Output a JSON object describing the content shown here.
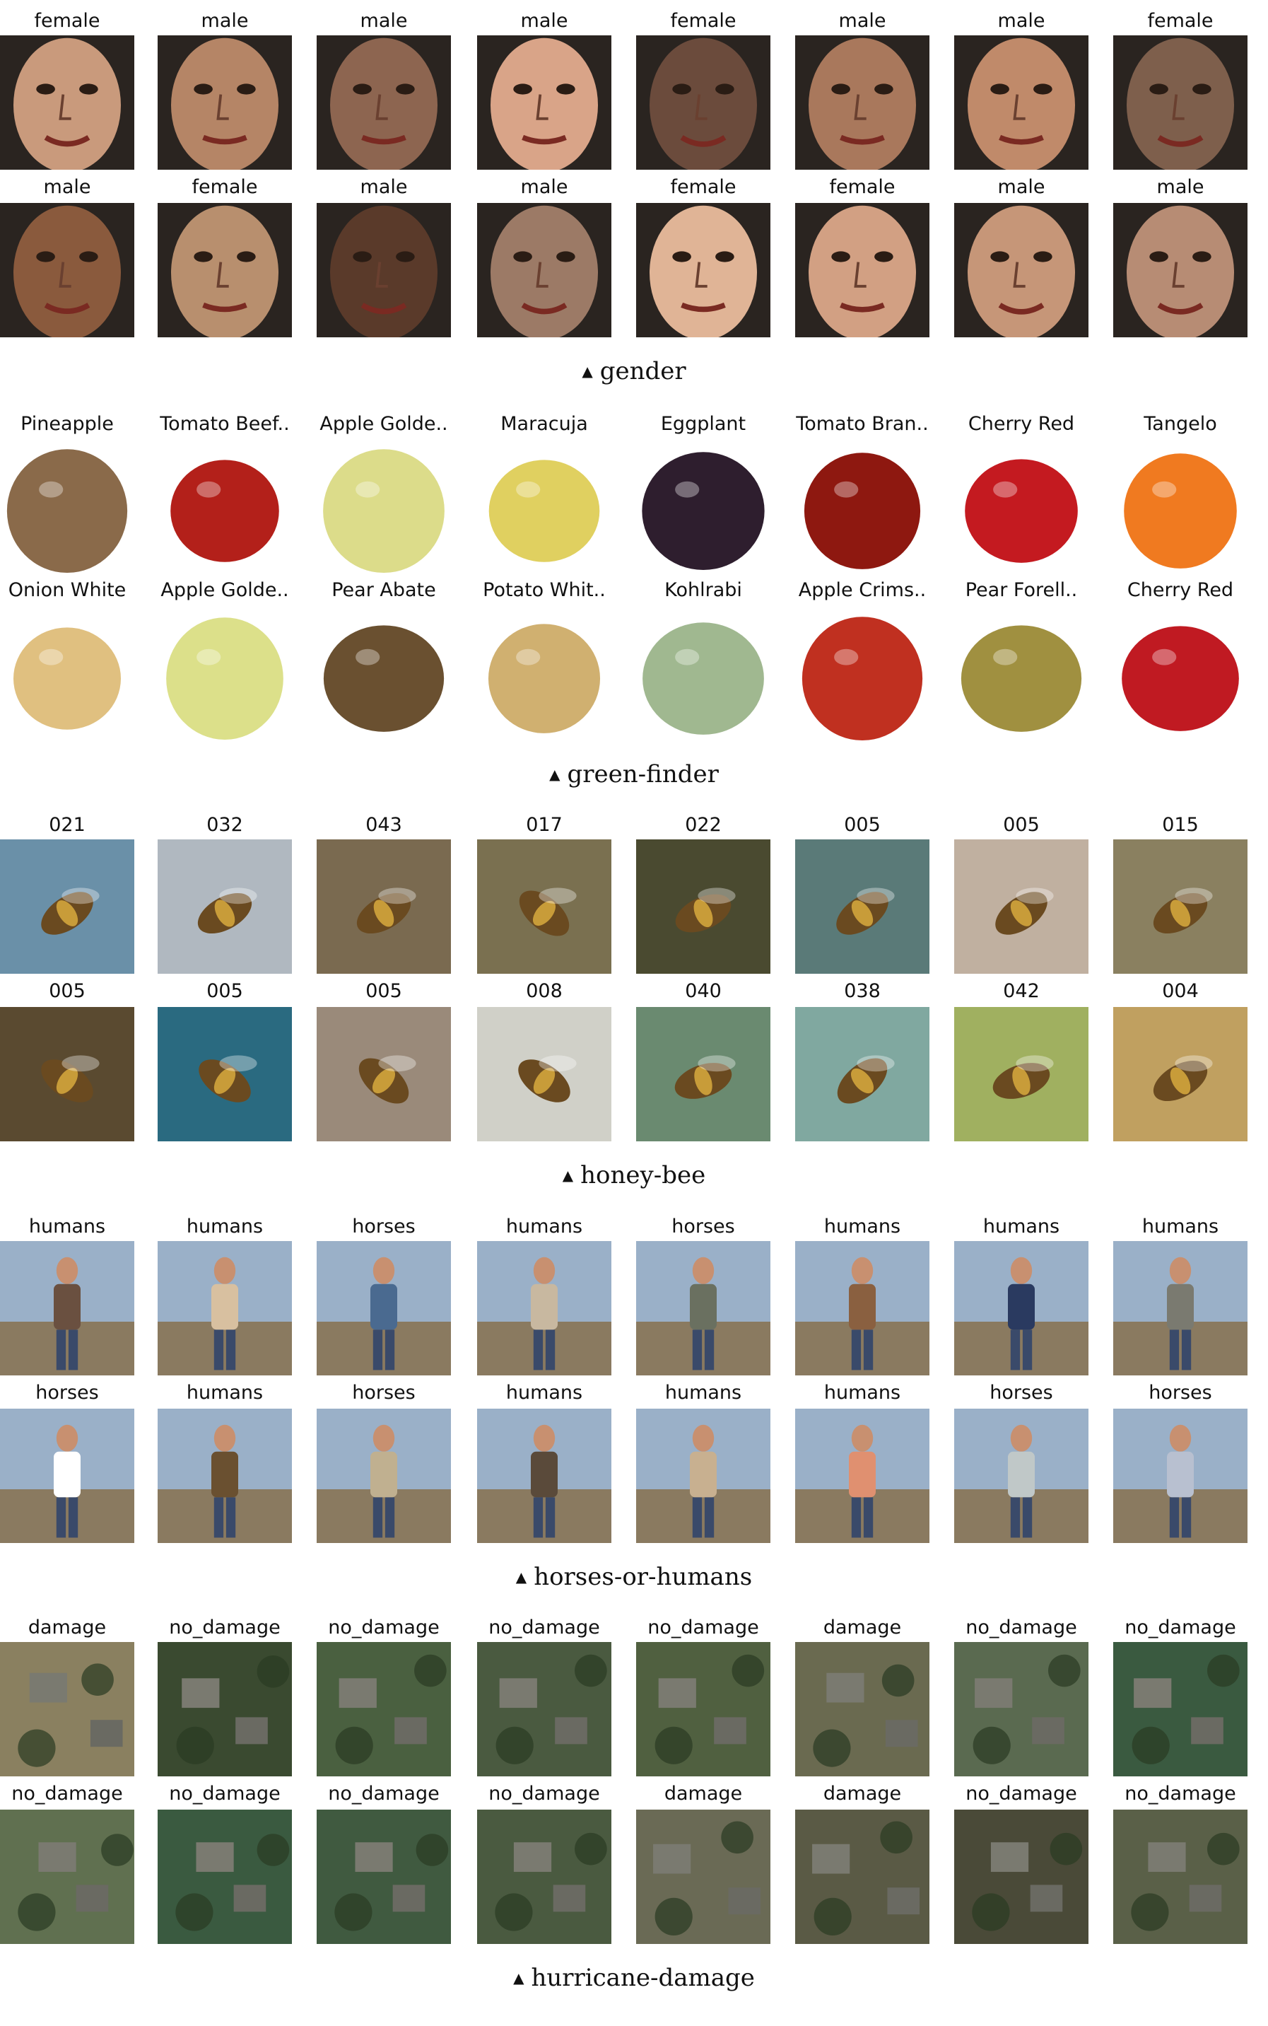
{
  "sections": [
    {
      "caption": "gender",
      "kind": "face",
      "rows": [
        [
          "female",
          "male",
          "male",
          "male",
          "female",
          "male",
          "male",
          "female"
        ],
        [
          "male",
          "female",
          "male",
          "male",
          "female",
          "female",
          "male",
          "male"
        ]
      ]
    },
    {
      "caption": "green-finder",
      "kind": "fruit",
      "rows": [
        [
          "Pineapple",
          "Tomato Beef..",
          "Apple Golde..",
          "Maracuja",
          "Eggplant",
          "Tomato Bran..",
          "Cherry Red",
          "Tangelo"
        ],
        [
          "Onion White",
          "Apple Golde..",
          "Pear Abate",
          "Potato Whit..",
          "Kohlrabi",
          "Apple Crims..",
          "Pear Forell..",
          "Cherry Red"
        ]
      ]
    },
    {
      "caption": "honey-bee",
      "kind": "bee",
      "rows": [
        [
          "021",
          "032",
          "043",
          "017",
          "022",
          "005",
          "005",
          "015"
        ],
        [
          "005",
          "005",
          "005",
          "008",
          "040",
          "038",
          "042",
          "004"
        ]
      ]
    },
    {
      "caption": "horses-or-humans",
      "kind": "render",
      "rows": [
        [
          "humans",
          "humans",
          "horses",
          "humans",
          "horses",
          "humans",
          "humans",
          "humans"
        ],
        [
          "horses",
          "humans",
          "horses",
          "humans",
          "humans",
          "humans",
          "horses",
          "horses"
        ]
      ]
    },
    {
      "caption": "hurricane-damage",
      "kind": "aerial",
      "rows": [
        [
          "damage",
          "no_damage",
          "no_damage",
          "no_damage",
          "no_damage",
          "damage",
          "no_damage",
          "no_damage"
        ],
        [
          "no_damage",
          "no_damage",
          "no_damage",
          "no_damage",
          "damage",
          "damage",
          "no_damage",
          "no_damage"
        ]
      ]
    }
  ],
  "colors": {
    "face": [
      "#c99a7c",
      "#b58566",
      "#8d6550",
      "#d9a488",
      "#6b4b3c",
      "#a9785c",
      "#c08a6a",
      "#7e5f4c",
      "#8a5a3d",
      "#b88f6e",
      "#5a3a2a",
      "#9c7a66",
      "#e0b496",
      "#d2a083",
      "#c69678",
      "#b78c74"
    ],
    "fruit": [
      "#8a6a4a",
      "#b3201a",
      "#dcdc8a",
      "#e0d060",
      "#2e1e2e",
      "#8e1810",
      "#c41a20",
      "#f07a20",
      "#e0c080",
      "#dce08a",
      "#6a5030",
      "#d0b070",
      "#a0b890",
      "#c03020",
      "#a09040",
      "#c01a22"
    ],
    "bee": [
      "#6a90a8",
      "#b0b8c0",
      "#7a6a50",
      "#7a7050",
      "#4a4a30",
      "#5a7a78",
      "#c0b0a0",
      "#8a8060",
      "#5a4a30",
      "#2a6a80",
      "#9a8a7a",
      "#d0d0c8",
      "#6a8a70",
      "#80a8a0",
      "#a0b060",
      "#c0a060"
    ],
    "render": [
      "#6a5040",
      "#d8c0a0",
      "#4a6a90",
      "#c8b8a0",
      "#6a7060",
      "#8a6040",
      "#2a3a60",
      "#7a7a70",
      "#ffffff",
      "#6a5030",
      "#c0b090",
      "#5a4a3a",
      "#c8b090",
      "#e09070",
      "#c0c8c8",
      "#b8c0d0"
    ],
    "aerial": [
      "#8a8060",
      "#3a4a30",
      "#4a6040",
      "#4a5a40",
      "#506040",
      "#6a6a50",
      "#5a6a50",
      "#3a5a40",
      "#607050",
      "#3a5a40",
      "#405a40",
      "#4a5a40",
      "#6a6a55",
      "#5a5a45",
      "#4a4a38",
      "#5a6048"
    ]
  }
}
